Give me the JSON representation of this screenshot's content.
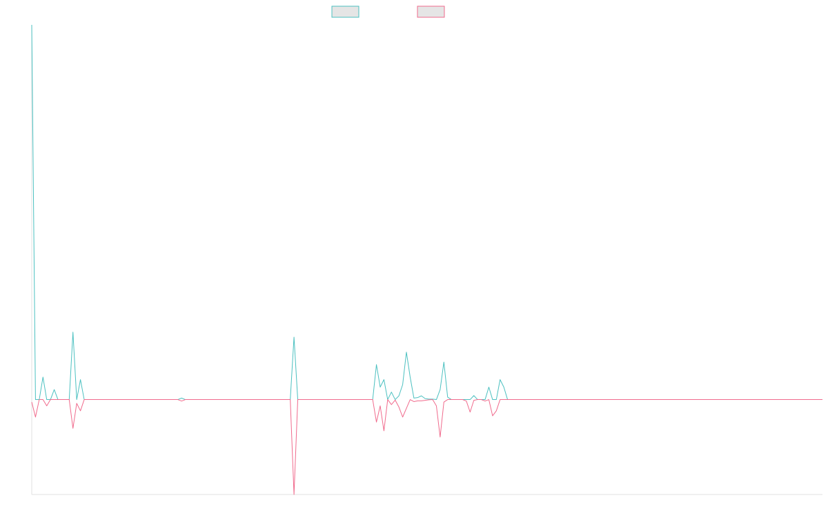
{
  "chart_data": {
    "type": "line",
    "title": "",
    "xlabel": "",
    "ylabel": "",
    "grid": false,
    "legend_position": "top-center",
    "ylim": [
      -38,
      150
    ],
    "series": [
      {
        "name": "",
        "color": "#4bc0c0",
        "fill": "#e5e5e5",
        "values": [
          150,
          0,
          0,
          9,
          0,
          0,
          4,
          0,
          0,
          0,
          0,
          27,
          0,
          8,
          0,
          0,
          0,
          0,
          0,
          0,
          0,
          0,
          0,
          0,
          0,
          0,
          0,
          0,
          0,
          0,
          0,
          0,
          0,
          0,
          0,
          0,
          0,
          0,
          0,
          0,
          0.6,
          0,
          0,
          0,
          0,
          0,
          0,
          0,
          0,
          0,
          0,
          0,
          0,
          0,
          0,
          0,
          0,
          0,
          0,
          0,
          0,
          0,
          0,
          0,
          0,
          0,
          0,
          0,
          0,
          0,
          25,
          0,
          0,
          0,
          0,
          0,
          0,
          0,
          0,
          0,
          0,
          0,
          0,
          0,
          0,
          0,
          0,
          0,
          0,
          0,
          0,
          0,
          14,
          5,
          8,
          0,
          3,
          0,
          1.5,
          6,
          19,
          9,
          0.6,
          0.8,
          1.5,
          0.4,
          0.2,
          0.2,
          0,
          4,
          15,
          1,
          0,
          0,
          0,
          0,
          0,
          0,
          1.6,
          0,
          0,
          0,
          5,
          0,
          0,
          8,
          5,
          0,
          0,
          0,
          0,
          0,
          0,
          0,
          0,
          0,
          0,
          0,
          0,
          0,
          0,
          0,
          0,
          0,
          0,
          0,
          0,
          0,
          0,
          0,
          0,
          0,
          0,
          0,
          0,
          0,
          0,
          0,
          0,
          0,
          0,
          0,
          0,
          0,
          0,
          0,
          0,
          0,
          0,
          0,
          0,
          0,
          0,
          0,
          0,
          0,
          0,
          0,
          0,
          0,
          0,
          0,
          0,
          0,
          0,
          0,
          0,
          0,
          0,
          0,
          0,
          0,
          0,
          0,
          0,
          0,
          0,
          0,
          0,
          0,
          0,
          0,
          0,
          0,
          0,
          0,
          0,
          0,
          0
        ]
      },
      {
        "name": "",
        "color": "#f06a8c",
        "fill": "#e5e5e5",
        "values": [
          -1,
          -7,
          0,
          0,
          -2.5,
          0,
          0,
          0,
          0,
          0,
          0,
          -11.5,
          -1.5,
          -4.5,
          0,
          0,
          0,
          0,
          0,
          0,
          0,
          0,
          0,
          0,
          0,
          0,
          0,
          0,
          0,
          0,
          0,
          0,
          0,
          0,
          0,
          0,
          0,
          0,
          0,
          0,
          -0.6,
          0,
          0,
          0,
          0,
          0,
          0,
          0,
          0,
          0,
          0,
          0,
          0,
          0,
          0,
          0,
          0,
          0,
          0,
          0,
          0,
          0,
          0,
          0,
          0,
          0,
          0,
          0,
          0,
          0,
          -38,
          0,
          0,
          0,
          0,
          0,
          0,
          0,
          0,
          0,
          0,
          0,
          0,
          0,
          0,
          0,
          0,
          0,
          0,
          0,
          0,
          0,
          -9,
          -2.5,
          -12.5,
          0,
          -2,
          -0.2,
          -3,
          -7,
          -3.5,
          0,
          -0.8,
          -0.5,
          -0.5,
          -0.3,
          -0.1,
          0,
          -2.5,
          -15,
          -1,
          0,
          0,
          0,
          0,
          0,
          -0.6,
          -5,
          -0.3,
          0,
          0,
          -0.6,
          0,
          -6.5,
          -4.5,
          0,
          0,
          0,
          0,
          0,
          0,
          0,
          0,
          0,
          0,
          0,
          0,
          0,
          0,
          0,
          0,
          0,
          0,
          0,
          0,
          0,
          0,
          0,
          0,
          0,
          0,
          0,
          0,
          0,
          0,
          0,
          0,
          0,
          0,
          0,
          0,
          0,
          0,
          0,
          0,
          0,
          0,
          0,
          0,
          0,
          0,
          0,
          0,
          0,
          0,
          0,
          0,
          0,
          0,
          0,
          0,
          0,
          0,
          0,
          0,
          0,
          0,
          0,
          0,
          0,
          0,
          0,
          0,
          0,
          0,
          0,
          0,
          0,
          0,
          0,
          0,
          0,
          0,
          0,
          0,
          0,
          0
        ]
      }
    ]
  }
}
